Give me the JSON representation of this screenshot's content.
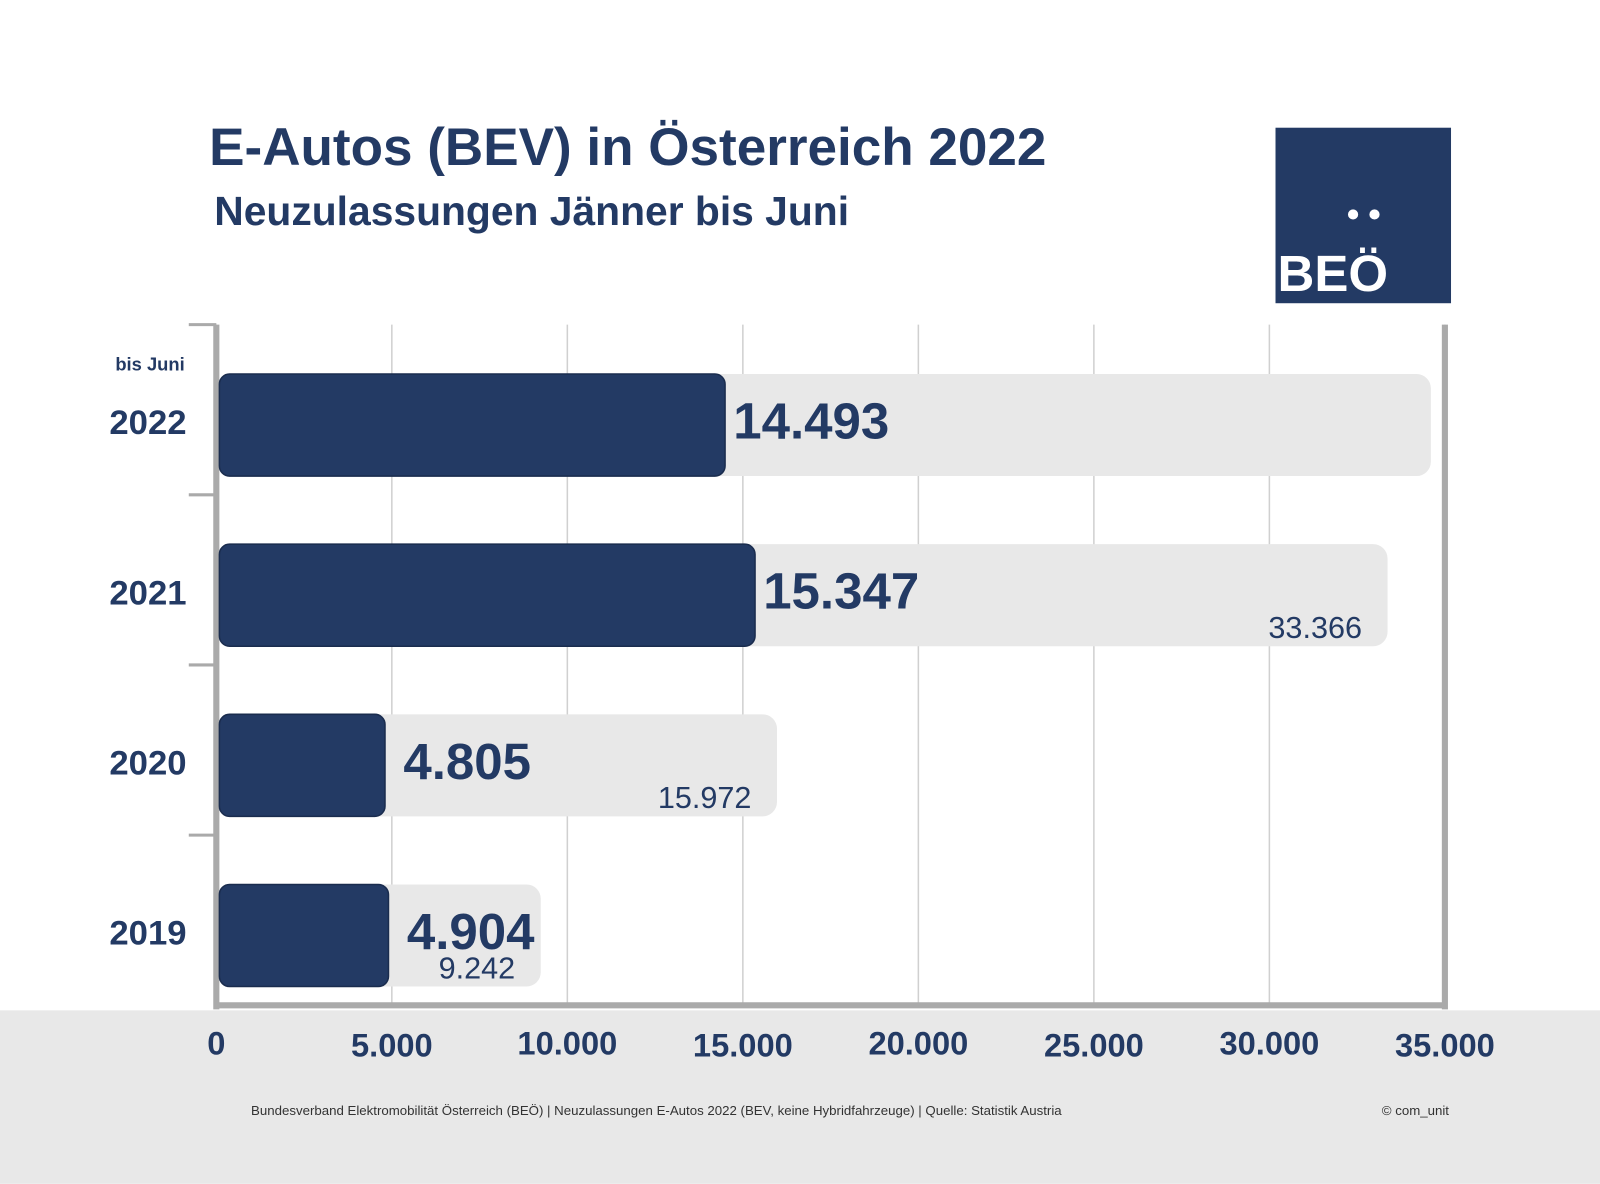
{
  "chart_data": {
    "type": "bar",
    "title": "E-Autos (BEV) in Österreich 2022",
    "subtitle": "Neuzulassungen Jänner bis Juni",
    "logo": "BEÖ",
    "annotation": "bis Juni",
    "categories": [
      "2022",
      "2021",
      "2020",
      "2019"
    ],
    "series": [
      {
        "color": "#e8e8e8",
        "values": [
          34600,
          33366,
          15972,
          9242
        ],
        "value_labels": [
          null,
          "33.366",
          "15.972",
          "9.242"
        ]
      },
      {
        "color": "#233a64",
        "values": [
          14493,
          15347,
          4805,
          4904
        ],
        "value_labels": [
          "14.493",
          "15.347",
          "4.805",
          "4.904"
        ]
      }
    ],
    "xlim": [
      0,
      35000
    ],
    "xticks": [
      0,
      {
        "value": 5000,
        "label": "5.000"
      },
      {
        "value": 10000,
        "label": "10.000"
      },
      {
        "value": 15000,
        "label": "15.000"
      },
      {
        "value": 20000,
        "label": "20.000"
      },
      {
        "value": 25000,
        "label": "25.000"
      },
      {
        "value": 30000,
        "label": "30.000"
      },
      {
        "value": 35000,
        "label": "35.000"
      }
    ],
    "grid": true,
    "source": "Bundesverband Elektromobilität Österreich (BEÖ) | Neuzulassungen E-Autos 2022 (BEV, keine Hybridfahrzeuge) | Quelle: Statistik Austria",
    "copyright": "© com_unit"
  }
}
